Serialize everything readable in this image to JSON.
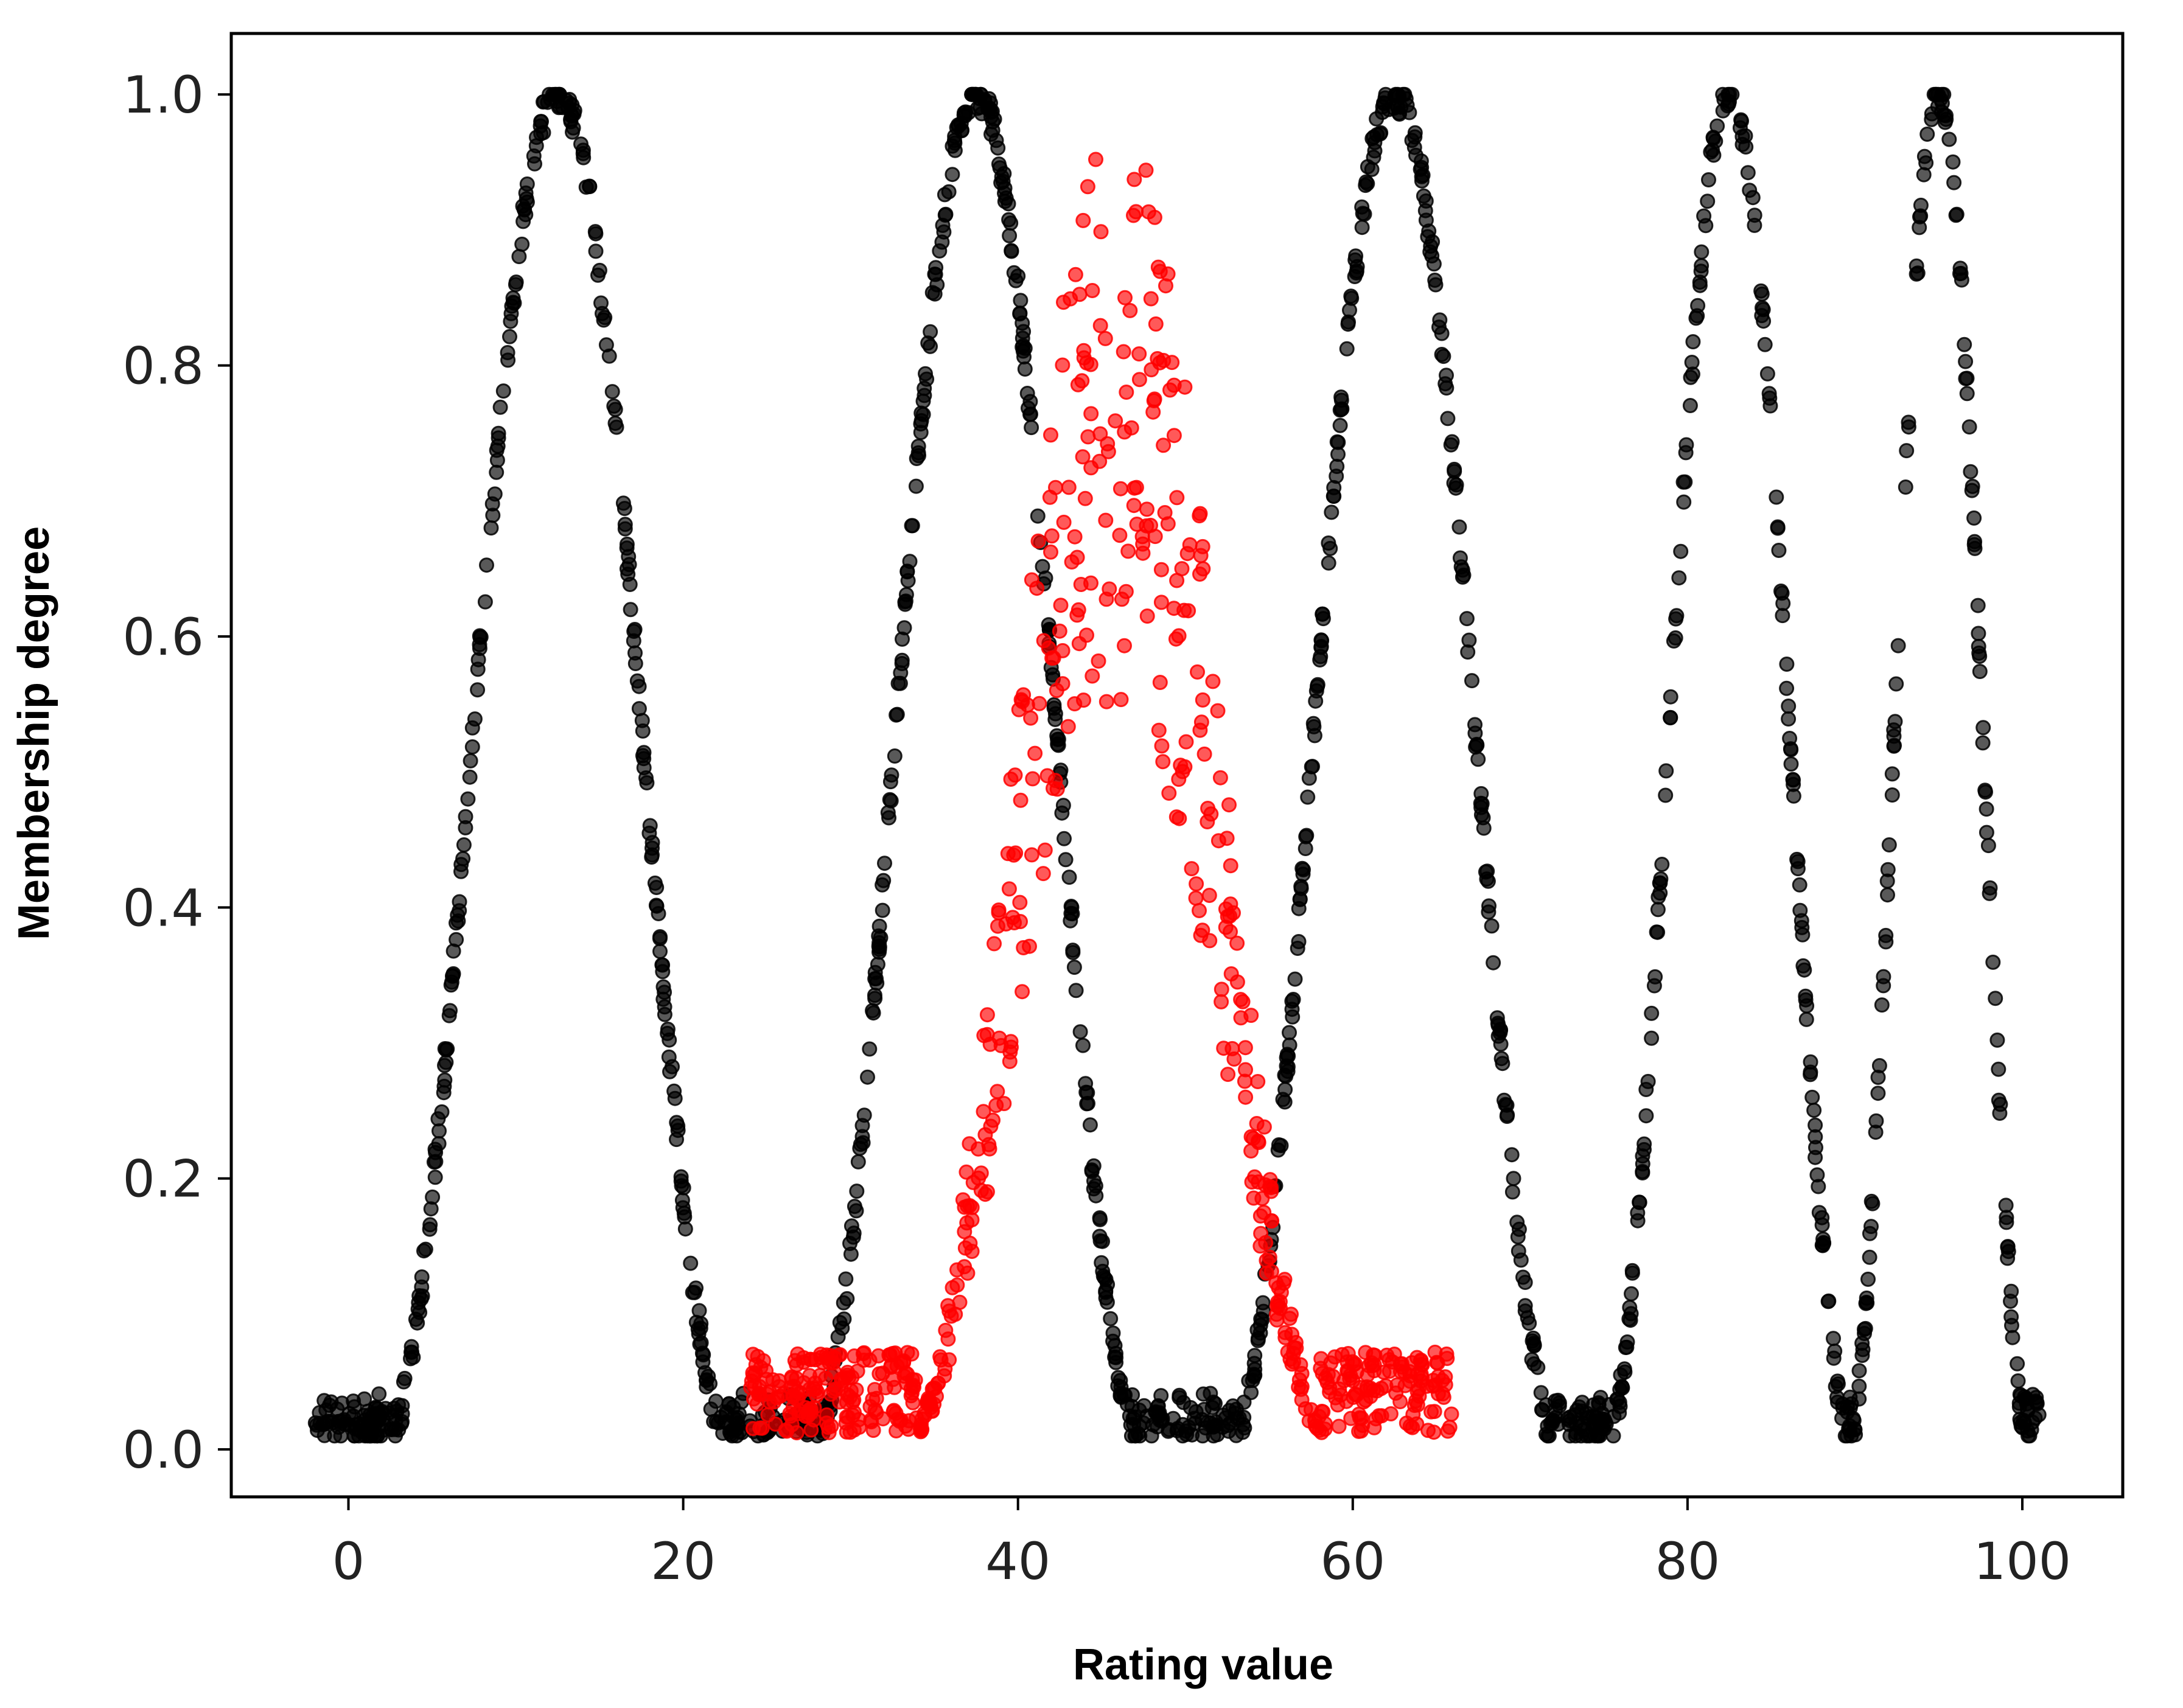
{
  "chart_data": {
    "type": "scatter",
    "title": "",
    "xlabel": "Rating value",
    "ylabel": "Membership degree",
    "xlim": [
      -7,
      106
    ],
    "ylim": [
      -0.035,
      1.045
    ],
    "x_ticks": [
      0,
      20,
      40,
      60,
      80,
      100
    ],
    "y_ticks": [
      0.0,
      0.2,
      0.4,
      0.6,
      0.8,
      1.0
    ],
    "x_tick_labels": [
      "0",
      "20",
      "40",
      "60",
      "80",
      "100"
    ],
    "y_tick_labels": [
      "0.0",
      "0.2",
      "0.4",
      "0.6",
      "0.8",
      "1.0"
    ],
    "grid": false,
    "legend": "none",
    "series": [
      {
        "color": "#000000",
        "alpha": 0.65,
        "peaks": [
          {
            "center": 12.5,
            "half_width": 10.5,
            "peak": 1.0
          },
          {
            "center": 37.5,
            "half_width": 10.0,
            "peak": 1.0
          },
          {
            "center": 62.5,
            "half_width": 10.0,
            "peak": 1.0
          },
          {
            "center": 82.5,
            "half_width": 7.5,
            "peak": 1.0
          },
          {
            "center": 95.0,
            "half_width": 5.5,
            "peak": 1.0
          }
        ],
        "x_range": [
          -2,
          101
        ]
      },
      {
        "color": "#ff0000",
        "alpha": 0.65,
        "peaks": [
          {
            "center": 46.0,
            "half_width": 13.0,
            "peak": 1.0
          }
        ],
        "x_range": [
          24,
          66
        ]
      }
    ]
  }
}
